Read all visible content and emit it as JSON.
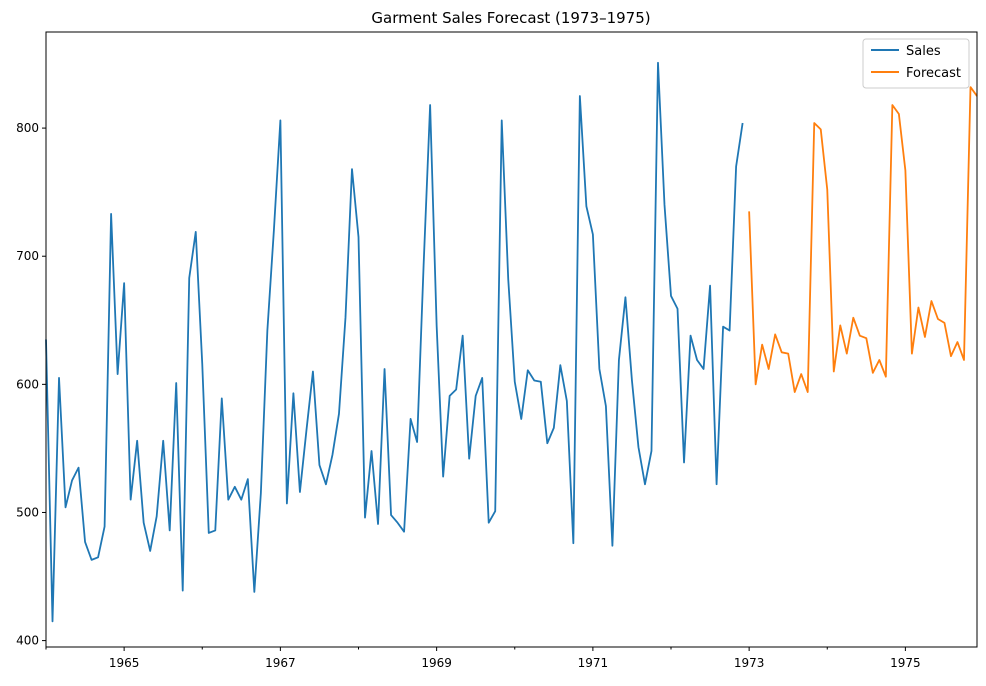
{
  "chart_data": {
    "type": "line",
    "title": "Garment Sales Forecast (1973–1975)",
    "xlabel": "",
    "ylabel": "",
    "xlim": [
      "1964-01",
      "1975-12"
    ],
    "ylim": [
      395,
      875
    ],
    "x_ticks": [
      "1965",
      "1967",
      "1969",
      "1971",
      "1973",
      "1975"
    ],
    "y_ticks": [
      400,
      500,
      600,
      700,
      800
    ],
    "grid": false,
    "legend_position": "top-right",
    "colors": {
      "Sales": "#1f77b4",
      "Forecast": "#ff7f0e"
    },
    "series": [
      {
        "name": "Sales",
        "start": "1964-01",
        "values": [
          635,
          415,
          605,
          504,
          525,
          535,
          477,
          463,
          465,
          489,
          733,
          608,
          679,
          510,
          556,
          492,
          470,
          497,
          556,
          486,
          601,
          439,
          683,
          719,
          616,
          484,
          486,
          589,
          510,
          520,
          510,
          526,
          438,
          515,
          642,
          720,
          806,
          507,
          593,
          516,
          564,
          610,
          537,
          522,
          545,
          577,
          652,
          768,
          715,
          496,
          548,
          491,
          612,
          498,
          492,
          485,
          573,
          555,
          693,
          818,
          646,
          528,
          591,
          596,
          638,
          542,
          591,
          605,
          492,
          501,
          806,
          682,
          602,
          573,
          611,
          603,
          602,
          554,
          566,
          615,
          587,
          476,
          825,
          739,
          717,
          612,
          583,
          474,
          619,
          668,
          603,
          551,
          522,
          548,
          851,
          740,
          669,
          659,
          539,
          638,
          619,
          612,
          677,
          522,
          645,
          642,
          770,
          804
        ]
      },
      {
        "name": "Forecast",
        "start": "1973-01",
        "values": [
          735,
          600,
          631,
          612,
          639,
          625,
          624,
          594,
          608,
          594,
          804,
          799,
          752,
          610,
          646,
          624,
          652,
          638,
          636,
          609,
          619,
          606,
          818,
          811,
          767,
          624,
          660,
          637,
          665,
          651,
          648,
          622,
          633,
          619,
          832,
          825
        ]
      }
    ]
  }
}
